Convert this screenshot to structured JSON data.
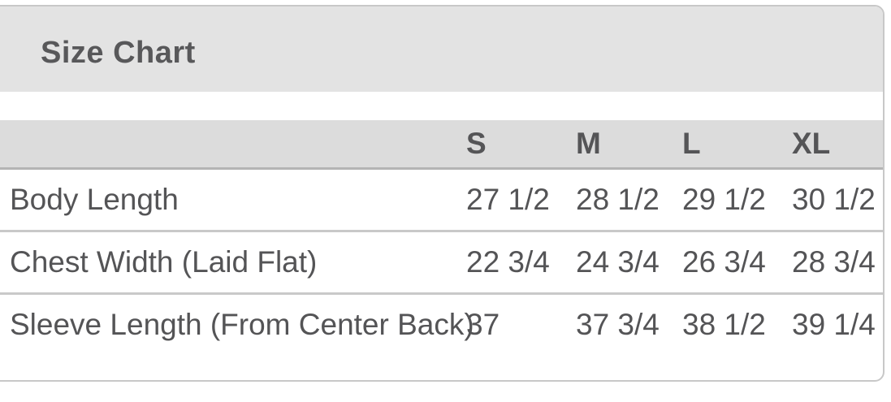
{
  "size_chart": {
    "title": "Size Chart",
    "columns": [
      "S",
      "M",
      "L",
      "XL"
    ],
    "rows": [
      {
        "label": "Body Length",
        "values": [
          "27 1/2",
          "28 1/2",
          "29 1/2",
          "30 1/2"
        ]
      },
      {
        "label": "Chest Width (Laid Flat)",
        "values": [
          "22 3/4",
          "24 3/4",
          "26 3/4",
          "28 3/4"
        ]
      },
      {
        "label": "Sleeve Length (From Center Back)",
        "values": [
          "37",
          "37 3/4",
          "38 1/2",
          "39 1/4"
        ]
      }
    ]
  },
  "chart_data": {
    "type": "table",
    "title": "Size Chart",
    "columns": [
      "S",
      "M",
      "L",
      "XL"
    ],
    "row_labels": [
      "Body Length",
      "Chest Width (Laid Flat)",
      "Sleeve Length (From Center Back)"
    ],
    "values_inches": [
      [
        27.5,
        28.5,
        29.5,
        30.5
      ],
      [
        22.75,
        24.75,
        26.75,
        28.75
      ],
      [
        37,
        37.75,
        38.5,
        39.25
      ]
    ]
  },
  "colors": {
    "page_bg": "#ffffff",
    "panel_border": "#c8c8c8",
    "title_band_bg": "#e3e3e3",
    "header_row_bg": "#dcdcdc",
    "header_underline": "#b4b4b4",
    "row_divider": "#c9c9c9",
    "text": "#545456"
  }
}
